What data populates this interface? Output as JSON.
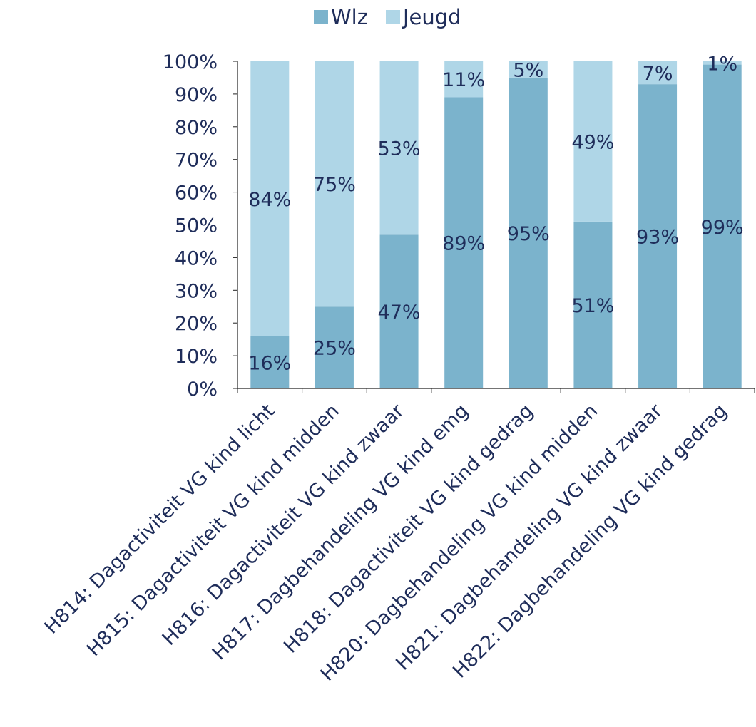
{
  "colors": {
    "wlz": "#7bb3cc",
    "jeugd": "#afd6e7",
    "text": "#1f2d5a",
    "axis": "#222222"
  },
  "chart_data": {
    "type": "bar",
    "stacked": true,
    "percent_stacked": true,
    "ylim": [
      0,
      100
    ],
    "y_ticks": [
      "0%",
      "10%",
      "20%",
      "30%",
      "40%",
      "50%",
      "60%",
      "70%",
      "80%",
      "90%",
      "100%"
    ],
    "legend_position": "top-center",
    "grid": false,
    "categories": [
      "H814: Dagactiviteit VG kind licht",
      "H815: Dagactiviteit VG kind midden",
      "H816: Dagactiviteit VG kind zwaar",
      "H817: Dagbehandeling VG kind emg",
      "H818: Dagactiviteit VG kind gedrag",
      "H820: Dagbehandeling VG kind midden",
      "H821: Dagbehandeling VG kind zwaar",
      "H822: Dagbehandeling VG kind gedrag"
    ],
    "series": [
      {
        "name": "Wlz",
        "color_key": "wlz",
        "values": [
          16,
          25,
          47,
          89,
          95,
          51,
          93,
          99
        ],
        "labels": [
          "16%",
          "25%",
          "47%",
          "89%",
          "95%",
          "51%",
          "93%",
          "99%"
        ]
      },
      {
        "name": "Jeugd",
        "color_key": "jeugd",
        "values": [
          84,
          75,
          53,
          11,
          5,
          49,
          7,
          1
        ],
        "labels": [
          "84%",
          "75%",
          "53%",
          "11%",
          "5%",
          "49%",
          "7%",
          "1%"
        ]
      }
    ]
  }
}
